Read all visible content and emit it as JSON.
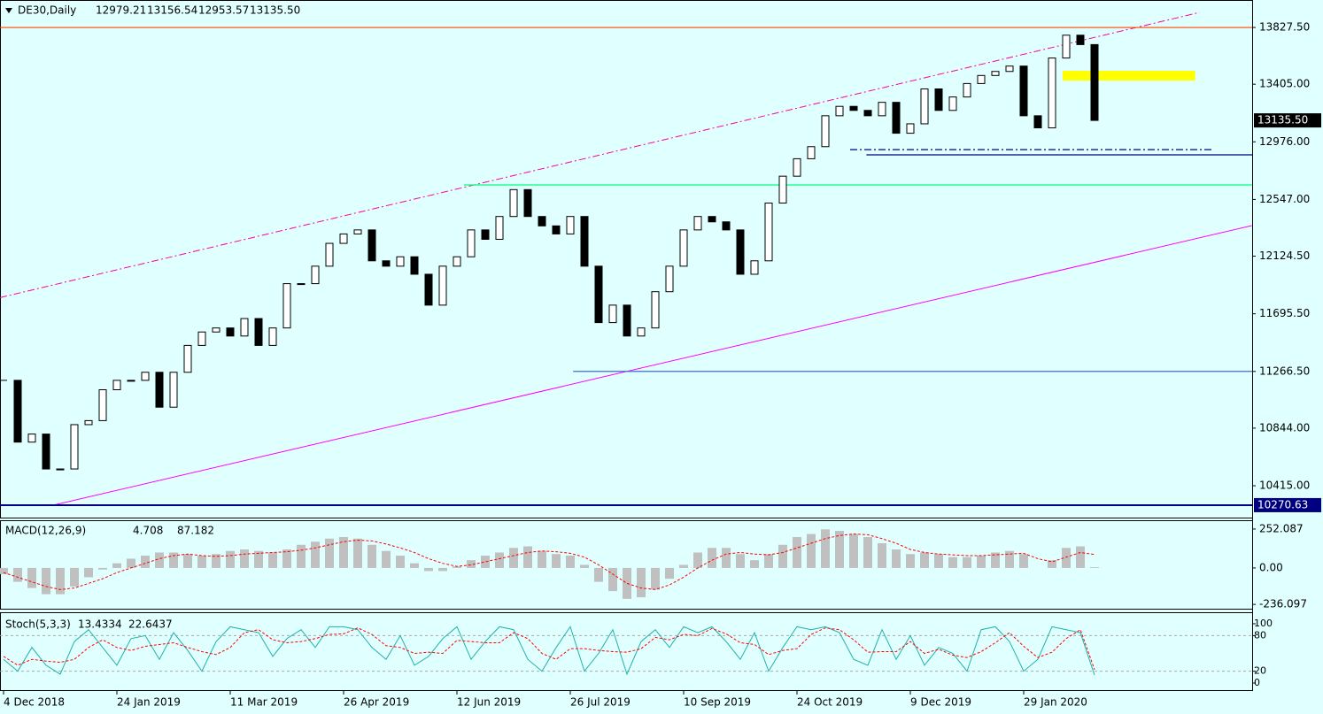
{
  "chart_data": {
    "type": "candlestick",
    "title": "DE30,Daily",
    "ohlc_labels": [
      "12979.21",
      "13156.54",
      "12953.57",
      "13135.50"
    ],
    "categories": [
      "4 Dec 2018",
      null,
      null,
      null,
      null,
      null,
      null,
      null,
      "24 Jan 2019",
      null,
      null,
      null,
      null,
      null,
      null,
      null,
      "11 Mar 2019",
      null,
      null,
      null,
      null,
      null,
      null,
      null,
      "26 Apr 2019",
      null,
      null,
      null,
      null,
      null,
      null,
      null,
      "12 Jun 2019",
      null,
      null,
      null,
      null,
      null,
      null,
      null,
      "26 Jul 2019",
      null,
      null,
      null,
      null,
      null,
      null,
      null,
      "10 Sep 2019",
      null,
      null,
      null,
      null,
      null,
      null,
      null,
      "24 Oct 2019",
      null,
      null,
      null,
      null,
      null,
      null,
      null,
      "9 Dec 2019",
      null,
      null,
      null,
      null,
      null,
      null,
      null,
      "29 Jan 2020",
      null,
      null,
      null,
      null,
      null
    ],
    "closes": [
      11200,
      10740,
      10800,
      10540,
      10540,
      10870,
      10900,
      11130,
      11200,
      11200,
      11260,
      11000,
      11260,
      11460,
      11560,
      11590,
      11530,
      11660,
      11460,
      11590,
      11920,
      11920,
      12050,
      12220,
      12290,
      12320,
      12090,
      12050,
      12120,
      11990,
      11760,
      12050,
      12120,
      12320,
      12250,
      12420,
      12620,
      12420,
      12350,
      12290,
      12420,
      12050,
      11630,
      11760,
      11530,
      11590,
      11860,
      12050,
      12320,
      12420,
      12380,
      12320,
      11990,
      12090,
      12520,
      12720,
      12850,
      12940,
      13170,
      13240,
      13210,
      13170,
      13270,
      13040,
      13110,
      13370,
      13210,
      13310,
      13410,
      13470,
      13500,
      13540,
      13170,
      13080,
      13600,
      13770,
      13700,
      13135.5
    ],
    "up_color": "#ffffff",
    "down_color": "#000000",
    "ylim": [
      10178,
      14032
    ],
    "yticks": [
      {
        "value": 13827.5,
        "label": "13827.50"
      },
      {
        "value": 13405,
        "label": "13405.00"
      },
      {
        "value": 12976,
        "label": "12976.00"
      },
      {
        "value": 12547,
        "label": "12547.00"
      },
      {
        "value": 12124.5,
        "label": "12124.50"
      },
      {
        "value": 11695.5,
        "label": "11695.50"
      },
      {
        "value": 11266.5,
        "label": "11266.50"
      },
      {
        "value": 10844,
        "label": "10844.00"
      },
      {
        "value": 10415,
        "label": "10415.00"
      }
    ],
    "hlines": [
      {
        "value": 13827.5,
        "from": null,
        "to": null,
        "color": "#ff4500",
        "dash": "none"
      },
      {
        "value": 12655,
        "from": 32.5,
        "to": null,
        "color": "#00ff7f",
        "dash": "none"
      },
      {
        "value": 11266.5,
        "from": 40.2,
        "to": null,
        "color": "#4169e1",
        "dash": "none"
      },
      {
        "value": 12918,
        "from": 59.75,
        "to": 85.4,
        "color": "#000080",
        "dash": "8 3 2 3"
      },
      {
        "value": 12879,
        "from": 60.9,
        "to": null,
        "color": "#000080",
        "dash": "none"
      },
      {
        "value": 10270.63,
        "from": null,
        "to": null,
        "color": "#000080",
        "dash": "none"
      }
    ],
    "trendlines": [
      {
        "x": [
          -0.25,
          84.4
        ],
        "y": [
          11816,
          13939
        ],
        "color": "#ff00a0",
        "dash": "8 3 2 3"
      },
      {
        "x": [
          3.5,
          88.1
        ],
        "y": [
          10270,
          12352
        ],
        "color": "#ff00ff",
        "dash": "none"
      }
    ],
    "zone": {
      "x": [
        74.75,
        84.1
      ],
      "y": [
        13432,
        13505
      ],
      "color": "#ffff00"
    },
    "price_boxes": [
      {
        "label": "13135.50",
        "value": 13135.5,
        "color": "#000000"
      },
      {
        "label": "10270.63",
        "value": 10270.63,
        "color": "#000080"
      }
    ],
    "macd": {
      "name": "MACD(12,26,9)",
      "ylim": [
        -264,
        309
      ],
      "yticks": [
        252.087,
        {
          "value": 0,
          "label": "0.00"
        },
        -236.097
      ],
      "histogram": [
        -40,
        -90,
        -130,
        -170,
        -170,
        -120,
        -60,
        -10,
        30,
        60,
        80,
        100,
        100,
        90,
        80,
        90,
        110,
        120,
        110,
        100,
        120,
        150,
        170,
        190,
        200,
        190,
        150,
        110,
        80,
        30,
        -20,
        -20,
        10,
        50,
        80,
        100,
        130,
        140,
        110,
        90,
        80,
        20,
        -90,
        -150,
        -200,
        -190,
        -140,
        -70,
        20,
        100,
        130,
        130,
        90,
        50,
        90,
        150,
        200,
        220,
        250,
        240,
        220,
        200,
        160,
        120,
        90,
        100,
        90,
        70,
        70,
        80,
        100,
        110,
        90,
        0,
        50,
        130,
        140,
        4.708
      ],
      "signal": [
        -30,
        -60,
        -90,
        -120,
        -140,
        -130,
        -100,
        -70,
        -30,
        0,
        30,
        60,
        80,
        90,
        80,
        75,
        80,
        90,
        95,
        100,
        105,
        115,
        130,
        150,
        170,
        180,
        175,
        155,
        130,
        100,
        60,
        30,
        10,
        20,
        40,
        60,
        80,
        100,
        110,
        105,
        95,
        70,
        20,
        -40,
        -100,
        -130,
        -140,
        -110,
        -60,
        0,
        50,
        90,
        100,
        90,
        85,
        100,
        130,
        160,
        190,
        210,
        220,
        215,
        190,
        160,
        120,
        100,
        90,
        85,
        80,
        80,
        85,
        90,
        95,
        60,
        40,
        70,
        100,
        87.182
      ],
      "hist_color": "#c0c0c0",
      "signal_color": "#ff0000"
    },
    "stoch": {
      "name": "Stoch(5,3,3)",
      "ylim": [
        -11.9,
        119.4
      ],
      "yticks": [
        0,
        20,
        80,
        100
      ],
      "levels": [
        20,
        80
      ],
      "main": [
        40,
        20,
        60,
        30,
        15,
        70,
        90,
        60,
        30,
        75,
        80,
        40,
        85,
        55,
        20,
        70,
        95,
        90,
        85,
        45,
        75,
        90,
        60,
        95,
        95,
        90,
        60,
        40,
        80,
        30,
        45,
        75,
        95,
        40,
        70,
        95,
        90,
        40,
        20,
        60,
        95,
        20,
        50,
        90,
        15,
        70,
        90,
        60,
        95,
        85,
        95,
        70,
        40,
        85,
        20,
        60,
        95,
        90,
        95,
        85,
        40,
        30,
        90,
        40,
        80,
        30,
        60,
        50,
        20,
        90,
        95,
        70,
        20,
        40,
        95,
        90,
        85,
        13.4334
      ],
      "signal": [
        45,
        30,
        40,
        37,
        35,
        40,
        60,
        73,
        60,
        55,
        62,
        65,
        68,
        60,
        53,
        48,
        60,
        85,
        90,
        73,
        68,
        70,
        75,
        82,
        83,
        93,
        82,
        63,
        60,
        50,
        52,
        50,
        72,
        70,
        68,
        68,
        85,
        75,
        50,
        40,
        58,
        58,
        55,
        53,
        52,
        58,
        77,
        73,
        82,
        80,
        92,
        83,
        68,
        65,
        48,
        55,
        58,
        82,
        93,
        90,
        73,
        52,
        53,
        53,
        70,
        50,
        57,
        47,
        43,
        53,
        68,
        85,
        62,
        43,
        52,
        75,
        90,
        22.6437
      ],
      "main_color": "#20b2aa",
      "signal_color": "#ff0000"
    }
  }
}
